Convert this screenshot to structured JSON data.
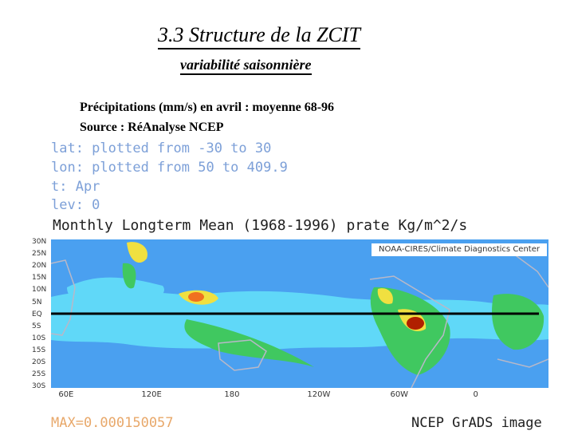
{
  "slide": {
    "title": "3.3 Structure de la ZCIT",
    "subtitle": " variabilité saisonnière",
    "desc_line1": "Précipitations (mm/s) en avril : moyenne 68-96",
    "desc_line2": "Source :  RéAnalyse NCEP"
  },
  "grads": {
    "lat": "lat: plotted from -30 to 30",
    "lon": "lon: plotted from 50 to 409.9",
    "time": "t: Apr",
    "lev": "lev: 0",
    "plot_title": "Monthly Longterm Mean (1968-1996) prate Kg/m^2/s",
    "credit": "NOAA-CIRES/Climate Diagnostics Center",
    "max_label": "MAX=0.000150057",
    "footer": "NCEP GrADS image"
  },
  "map": {
    "y_ticks": [
      "30N",
      "25N",
      "20N",
      "15N",
      "10N",
      "5N",
      "EQ",
      "5S",
      "10S",
      "15S",
      "20S",
      "25S",
      "30S"
    ],
    "x_ticks": [
      "60E",
      "120E",
      "180",
      "120W",
      "60W",
      "0"
    ],
    "colors": {
      "deep": "#1f2fb0",
      "dry": "#4aa0f0",
      "light": "#60d8f8",
      "mid": "#40c860",
      "wet": "#f0e040",
      "vwet": "#f07020",
      "max": "#b02000",
      "land": "#b8b8c8"
    }
  }
}
